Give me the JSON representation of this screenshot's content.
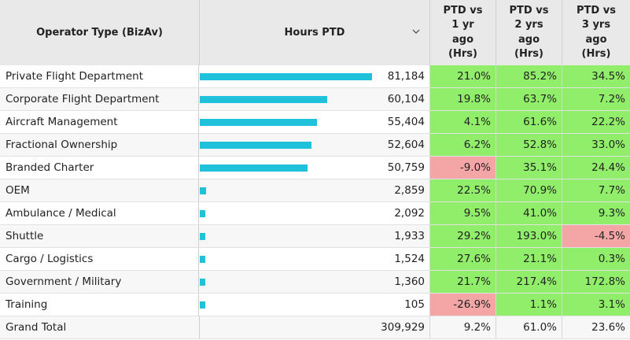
{
  "colors": {
    "bar": "#20c1db",
    "positive": "#90ee6a",
    "negative": "#f4a6a6",
    "header_bg": "#e9e9e9"
  },
  "icons": {
    "sort": "chevron-down-icon"
  },
  "chart_data": {
    "type": "table",
    "columns": {
      "operator": "Operator Type (BizAv)",
      "hours": "Hours PTD",
      "pct1": [
        "PTD vs",
        "1 yr",
        "ago",
        "(Hrs)"
      ],
      "pct2": [
        "PTD vs",
        "2 yrs",
        "ago",
        "(Hrs)"
      ],
      "pct3": [
        "PTD vs",
        "3 yrs",
        "ago",
        "(Hrs)"
      ]
    },
    "bar_max": 81184,
    "rows": [
      {
        "operator": "Private Flight Department",
        "hours": 81184,
        "hours_label": "81,184",
        "pct1": "21.0%",
        "pct2": "85.2%",
        "pct3": "34.5%"
      },
      {
        "operator": "Corporate Flight Department",
        "hours": 60104,
        "hours_label": "60,104",
        "pct1": "19.8%",
        "pct2": "63.7%",
        "pct3": "7.2%"
      },
      {
        "operator": "Aircraft Management",
        "hours": 55404,
        "hours_label": "55,404",
        "pct1": "4.1%",
        "pct2": "61.6%",
        "pct3": "22.2%"
      },
      {
        "operator": "Fractional Ownership",
        "hours": 52604,
        "hours_label": "52,604",
        "pct1": "6.2%",
        "pct2": "52.8%",
        "pct3": "33.0%"
      },
      {
        "operator": "Branded Charter",
        "hours": 50759,
        "hours_label": "50,759",
        "pct1": "-9.0%",
        "pct2": "35.1%",
        "pct3": "24.4%"
      },
      {
        "operator": "OEM",
        "hours": 2859,
        "hours_label": "2,859",
        "pct1": "22.5%",
        "pct2": "70.9%",
        "pct3": "7.7%"
      },
      {
        "operator": "Ambulance / Medical",
        "hours": 2092,
        "hours_label": "2,092",
        "pct1": "9.5%",
        "pct2": "41.0%",
        "pct3": "9.3%"
      },
      {
        "operator": "Shuttle",
        "hours": 1933,
        "hours_label": "1,933",
        "pct1": "29.2%",
        "pct2": "193.0%",
        "pct3": "-4.5%"
      },
      {
        "operator": "Cargo / Logistics",
        "hours": 1524,
        "hours_label": "1,524",
        "pct1": "27.6%",
        "pct2": "21.1%",
        "pct3": "0.3%"
      },
      {
        "operator": "Government / Military",
        "hours": 1360,
        "hours_label": "1,360",
        "pct1": "21.7%",
        "pct2": "217.4%",
        "pct3": "172.8%"
      },
      {
        "operator": "Training",
        "hours": 105,
        "hours_label": "105",
        "pct1": "-26.9%",
        "pct2": "1.1%",
        "pct3": "3.1%"
      }
    ],
    "total": {
      "label": "Grand Total",
      "hours": 309929,
      "hours_label": "309,929",
      "pct1": "9.2%",
      "pct2": "61.0%",
      "pct3": "23.6%"
    }
  }
}
